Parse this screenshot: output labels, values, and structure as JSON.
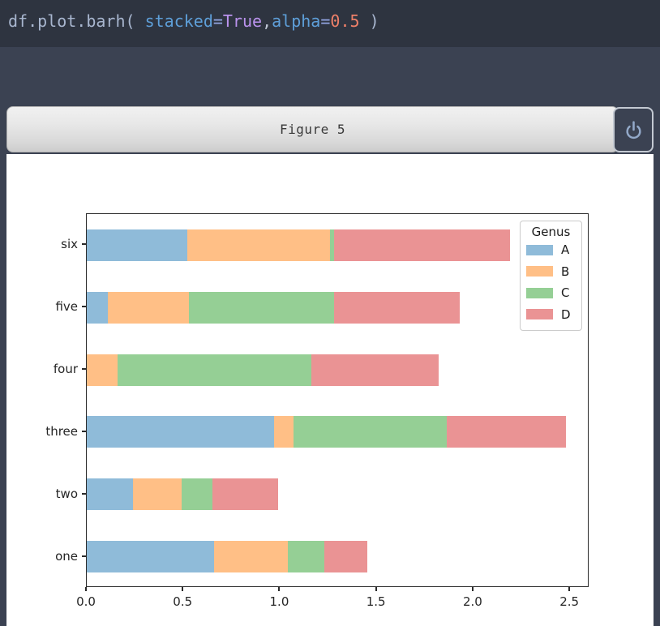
{
  "background": {
    "top_bar_color": "#2e3440",
    "window_bg_color": "#3b4252"
  },
  "code_editor": {
    "line": "df.plot.barh( stacked=True,alpha=0.5 )",
    "tokens": [
      {
        "text": "df.plot.barh( ",
        "color": "#a8b6cf"
      },
      {
        "text": "stacked",
        "color": "#5e9fd9"
      },
      {
        "text": "=",
        "color": "#93a5e2"
      },
      {
        "text": "True",
        "color": "#bb93ee"
      },
      {
        "text": ",",
        "color": "#bfc7d5"
      },
      {
        "text": "alpha",
        "color": "#5e9fd9"
      },
      {
        "text": "=",
        "color": "#93a5e2"
      },
      {
        "text": "0.5",
        "color": "#ee8069"
      },
      {
        "text": " )",
        "color": "#a8b6cf"
      }
    ]
  },
  "figure_window": {
    "title": "Figure 5"
  },
  "chart_data": {
    "type": "bar",
    "orientation": "horizontal",
    "stacked": true,
    "alpha": 0.5,
    "title": "",
    "xlabel": "",
    "ylabel": "",
    "legend_title": "Genus",
    "legend_position": "upper right",
    "grid": false,
    "categories_top_to_bottom": [
      "six",
      "five",
      "four",
      "three",
      "two",
      "one"
    ],
    "series": [
      {
        "name": "A",
        "color": "#8FBBD9",
        "values_top_to_bottom": [
          0.52,
          0.11,
          0.0,
          0.97,
          0.24,
          0.66
        ]
      },
      {
        "name": "B",
        "color": "#FFBF86",
        "values_top_to_bottom": [
          0.74,
          0.42,
          0.16,
          0.1,
          0.25,
          0.38
        ]
      },
      {
        "name": "C",
        "color": "#95CF95",
        "values_top_to_bottom": [
          0.02,
          0.75,
          1.0,
          0.79,
          0.16,
          0.19
        ]
      },
      {
        "name": "D",
        "color": "#EA9394",
        "values_top_to_bottom": [
          0.91,
          0.65,
          0.66,
          0.62,
          0.34,
          0.22
        ]
      }
    ],
    "x_ticks": [
      {
        "label": "0.0",
        "value": 0.0
      },
      {
        "label": "0.5",
        "value": 0.5
      },
      {
        "label": "1.0",
        "value": 1.0
      },
      {
        "label": "1.5",
        "value": 1.5
      },
      {
        "label": "2.0",
        "value": 2.0
      },
      {
        "label": "2.5",
        "value": 2.5
      }
    ],
    "xlim": [
      0,
      2.6
    ]
  }
}
